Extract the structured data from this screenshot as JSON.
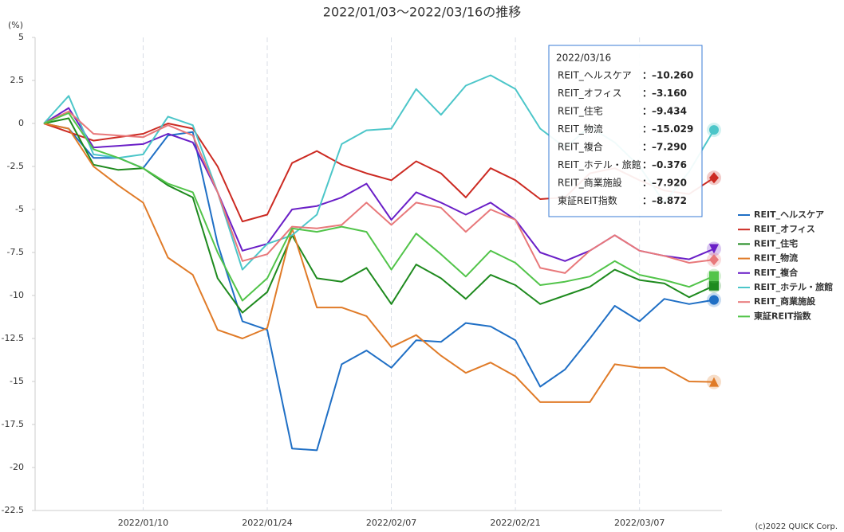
{
  "chart_data": {
    "type": "line",
    "title": "2022/01/03～2022/03/16の推移",
    "y_label": "(%)",
    "credit": "(c)2022 QUICK Corp.",
    "categories": [
      null,
      null,
      null,
      null,
      "2022/01/10",
      null,
      null,
      null,
      null,
      "2022/01/24",
      null,
      null,
      null,
      null,
      "2022/02/07",
      null,
      null,
      null,
      null,
      "2022/02/21",
      null,
      null,
      null,
      null,
      "2022/03/07",
      null,
      null,
      null
    ],
    "ylim": [
      -22.5,
      5
    ],
    "yticks": [
      5,
      2.5,
      0,
      -2.5,
      -5,
      -7.5,
      -10,
      -12.5,
      -15,
      -17.5,
      -20,
      -22.5
    ],
    "grid": "x-dashed",
    "legend": "right",
    "series": [
      {
        "name": "REIT_ヘルスケア",
        "color": "#1f6fc5",
        "marker": "circle",
        "values": [
          0,
          -0.3,
          -2.0,
          -2.0,
          -2.6,
          -0.7,
          -0.5,
          -7,
          -11.5,
          -12,
          -18.9,
          -19,
          -14,
          -13.2,
          -14.2,
          -12.6,
          -12.7,
          -11.6,
          -11.8,
          -12.6,
          -15.3,
          -14.3,
          -12.5,
          -10.6,
          -11.5,
          -10.2,
          -10.5,
          -10.26
        ]
      },
      {
        "name": "REIT_オフィス",
        "color": "#cc2a22",
        "marker": "diamond",
        "values": [
          0,
          -0.5,
          -1.0,
          -0.8,
          -0.6,
          0,
          -0.3,
          -2.5,
          -5.7,
          -5.3,
          -2.3,
          -1.6,
          -2.4,
          -2.9,
          -3.3,
          -2.2,
          -2.9,
          -4.3,
          -2.6,
          -3.3,
          -4.4,
          -4.3,
          -2.9,
          -2.6,
          -3.3,
          -3.9,
          -4.1,
          -3.16
        ]
      },
      {
        "name": "REIT_住宅",
        "color": "#1e8a1e",
        "marker": "square",
        "values": [
          0,
          0.3,
          -2.4,
          -2.7,
          -2.6,
          -3.6,
          -4.3,
          -9,
          -11,
          -9.8,
          -6.5,
          -9.0,
          -9.2,
          -8.4,
          -10.5,
          -8.2,
          -9.0,
          -10.2,
          -8.8,
          -9.4,
          -10.5,
          -10.0,
          -9.5,
          -8.5,
          -9.1,
          -9.3,
          -10.1,
          -9.434
        ]
      },
      {
        "name": "REIT_物流",
        "color": "#e07b28",
        "marker": "triangle-up",
        "values": [
          0,
          -0.3,
          -2.5,
          -3.6,
          -4.6,
          -7.8,
          -8.8,
          -12,
          -12.5,
          -11.9,
          -6.1,
          -10.7,
          -10.7,
          -11.2,
          -13,
          -12.3,
          -13.5,
          -14.5,
          -13.9,
          -14.7,
          -16.2,
          -16.2,
          -16.2,
          -14,
          -14.2,
          -14.2,
          -15.0,
          -15.029
        ]
      },
      {
        "name": "REIT_複合",
        "color": "#6a1fc7",
        "marker": "triangle-down",
        "values": [
          0,
          0.9,
          -1.4,
          -1.3,
          -1.2,
          -0.6,
          -1.1,
          -4,
          -7.4,
          -7,
          -5,
          -4.8,
          -4.3,
          -3.5,
          -5.6,
          -4.0,
          -4.6,
          -5.3,
          -4.6,
          -5.6,
          -7.5,
          -8.0,
          -7.4,
          -6.5,
          -7.4,
          -7.7,
          -7.9,
          -7.29
        ]
      },
      {
        "name": "REIT_ホテル・旅館",
        "color": "#4cc6c9",
        "marker": "circle",
        "values": [
          0,
          1.6,
          -1.8,
          -2.0,
          -1.8,
          0.4,
          -0.1,
          -4,
          -8.5,
          -7,
          -6.5,
          -5.3,
          -1.2,
          -0.4,
          -0.3,
          2.0,
          0.5,
          2.2,
          2.8,
          2.0,
          -0.3,
          -1.4,
          -0.2,
          -1.1,
          -2.5,
          -4.6,
          -2.8,
          -0.376
        ]
      },
      {
        "name": "REIT_商業施設",
        "color": "#e8787a",
        "marker": "diamond",
        "values": [
          0,
          0.7,
          -0.6,
          -0.7,
          -0.8,
          -0.1,
          -0.7,
          -4,
          -8,
          -7.6,
          -6.0,
          -6.1,
          -5.9,
          -4.6,
          -5.9,
          -4.6,
          -4.9,
          -6.3,
          -5.0,
          -5.6,
          -8.4,
          -8.7,
          -7.4,
          -6.5,
          -7.4,
          -7.7,
          -8.1,
          -7.92
        ]
      },
      {
        "name": "東証REIT指数",
        "color": "#52c44a",
        "marker": "square",
        "values": [
          0,
          0.6,
          -1.5,
          -2.0,
          -2.6,
          -3.5,
          -4.0,
          -7.5,
          -10.3,
          -9.0,
          -6.1,
          -6.3,
          -6.0,
          -6.3,
          -8.5,
          -6.4,
          -7.6,
          -8.9,
          -7.4,
          -8.1,
          -9.4,
          -9.2,
          -8.9,
          -8.0,
          -8.8,
          -9.1,
          -9.5,
          -8.872
        ]
      }
    ],
    "tooltip": {
      "title": "2022/03/16",
      "labels": [
        "：–10.260",
        "：–3.160",
        "：–9.434",
        "：–15.029",
        "：–7.290",
        "：–0.376",
        "：–7.920",
        "：–8.872"
      ]
    }
  }
}
